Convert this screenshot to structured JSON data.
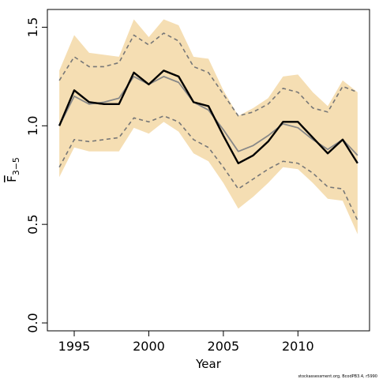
{
  "chart_data": {
    "type": "line",
    "xlabel": "Year",
    "ylabel": "F",
    "ylabel_subscript": "3−5",
    "xlim": [
      1993.2,
      2014.8
    ],
    "ylim": [
      -0.04,
      1.59
    ],
    "x_ticks": [
      1995,
      2000,
      2005,
      2010
    ],
    "x_tick_labels": [
      "1995",
      "2000",
      "2005",
      "2010"
    ],
    "y_ticks": [
      0.0,
      0.5,
      1.0,
      1.5
    ],
    "y_tick_labels": [
      "0.0",
      "0.5",
      "1.0",
      "1.5"
    ],
    "grid": false,
    "legend": "none",
    "credit": "stockassessment.org, BcodPB3.4, r5990",
    "x": [
      1994,
      1995,
      1996,
      1997,
      1998,
      1999,
      2000,
      2001,
      2002,
      2003,
      2004,
      2005,
      2006,
      2007,
      2008,
      2009,
      2010,
      2011,
      2012,
      2013,
      2014
    ],
    "band": {
      "color": "#f5deb3",
      "lower": [
        0.74,
        0.89,
        0.87,
        0.87,
        0.87,
        0.99,
        0.96,
        1.02,
        0.97,
        0.86,
        0.82,
        0.71,
        0.58,
        0.64,
        0.71,
        0.79,
        0.78,
        0.71,
        0.63,
        0.62,
        0.45
      ],
      "upper": [
        1.28,
        1.46,
        1.37,
        1.36,
        1.35,
        1.54,
        1.45,
        1.54,
        1.51,
        1.35,
        1.34,
        1.18,
        1.05,
        1.09,
        1.14,
        1.25,
        1.26,
        1.17,
        1.1,
        1.23,
        1.17
      ]
    },
    "series": [
      {
        "values": [
          0.79,
          0.93,
          0.92,
          0.93,
          0.94,
          1.04,
          1.02,
          1.05,
          1.02,
          0.93,
          0.89,
          0.79,
          0.68,
          0.73,
          0.78,
          0.82,
          0.81,
          0.76,
          0.69,
          0.68,
          0.52
        ],
        "color": "#777777",
        "width": 1.6,
        "dash": "5,4"
      },
      {
        "values": [
          1.23,
          1.35,
          1.3,
          1.3,
          1.32,
          1.46,
          1.41,
          1.47,
          1.43,
          1.3,
          1.27,
          1.16,
          1.05,
          1.07,
          1.11,
          1.19,
          1.17,
          1.09,
          1.07,
          1.2,
          1.17
        ],
        "color": "#777777",
        "width": 1.6,
        "dash": "5,4"
      },
      {
        "values": [
          1.0,
          1.15,
          1.11,
          1.12,
          1.14,
          1.25,
          1.21,
          1.25,
          1.22,
          1.12,
          1.08,
          0.98,
          0.87,
          0.9,
          0.95,
          1.01,
          0.99,
          0.93,
          0.88,
          0.93,
          0.85
        ],
        "color": "#888888",
        "width": 1.8
      },
      {
        "values": [
          1.0,
          1.18,
          1.12,
          1.11,
          1.11,
          1.27,
          1.21,
          1.28,
          1.25,
          1.12,
          1.1,
          0.95,
          0.81,
          0.85,
          0.92,
          1.02,
          1.02,
          0.94,
          0.86,
          0.93,
          0.81
        ],
        "color": "#000000",
        "width": 2.4
      }
    ]
  }
}
